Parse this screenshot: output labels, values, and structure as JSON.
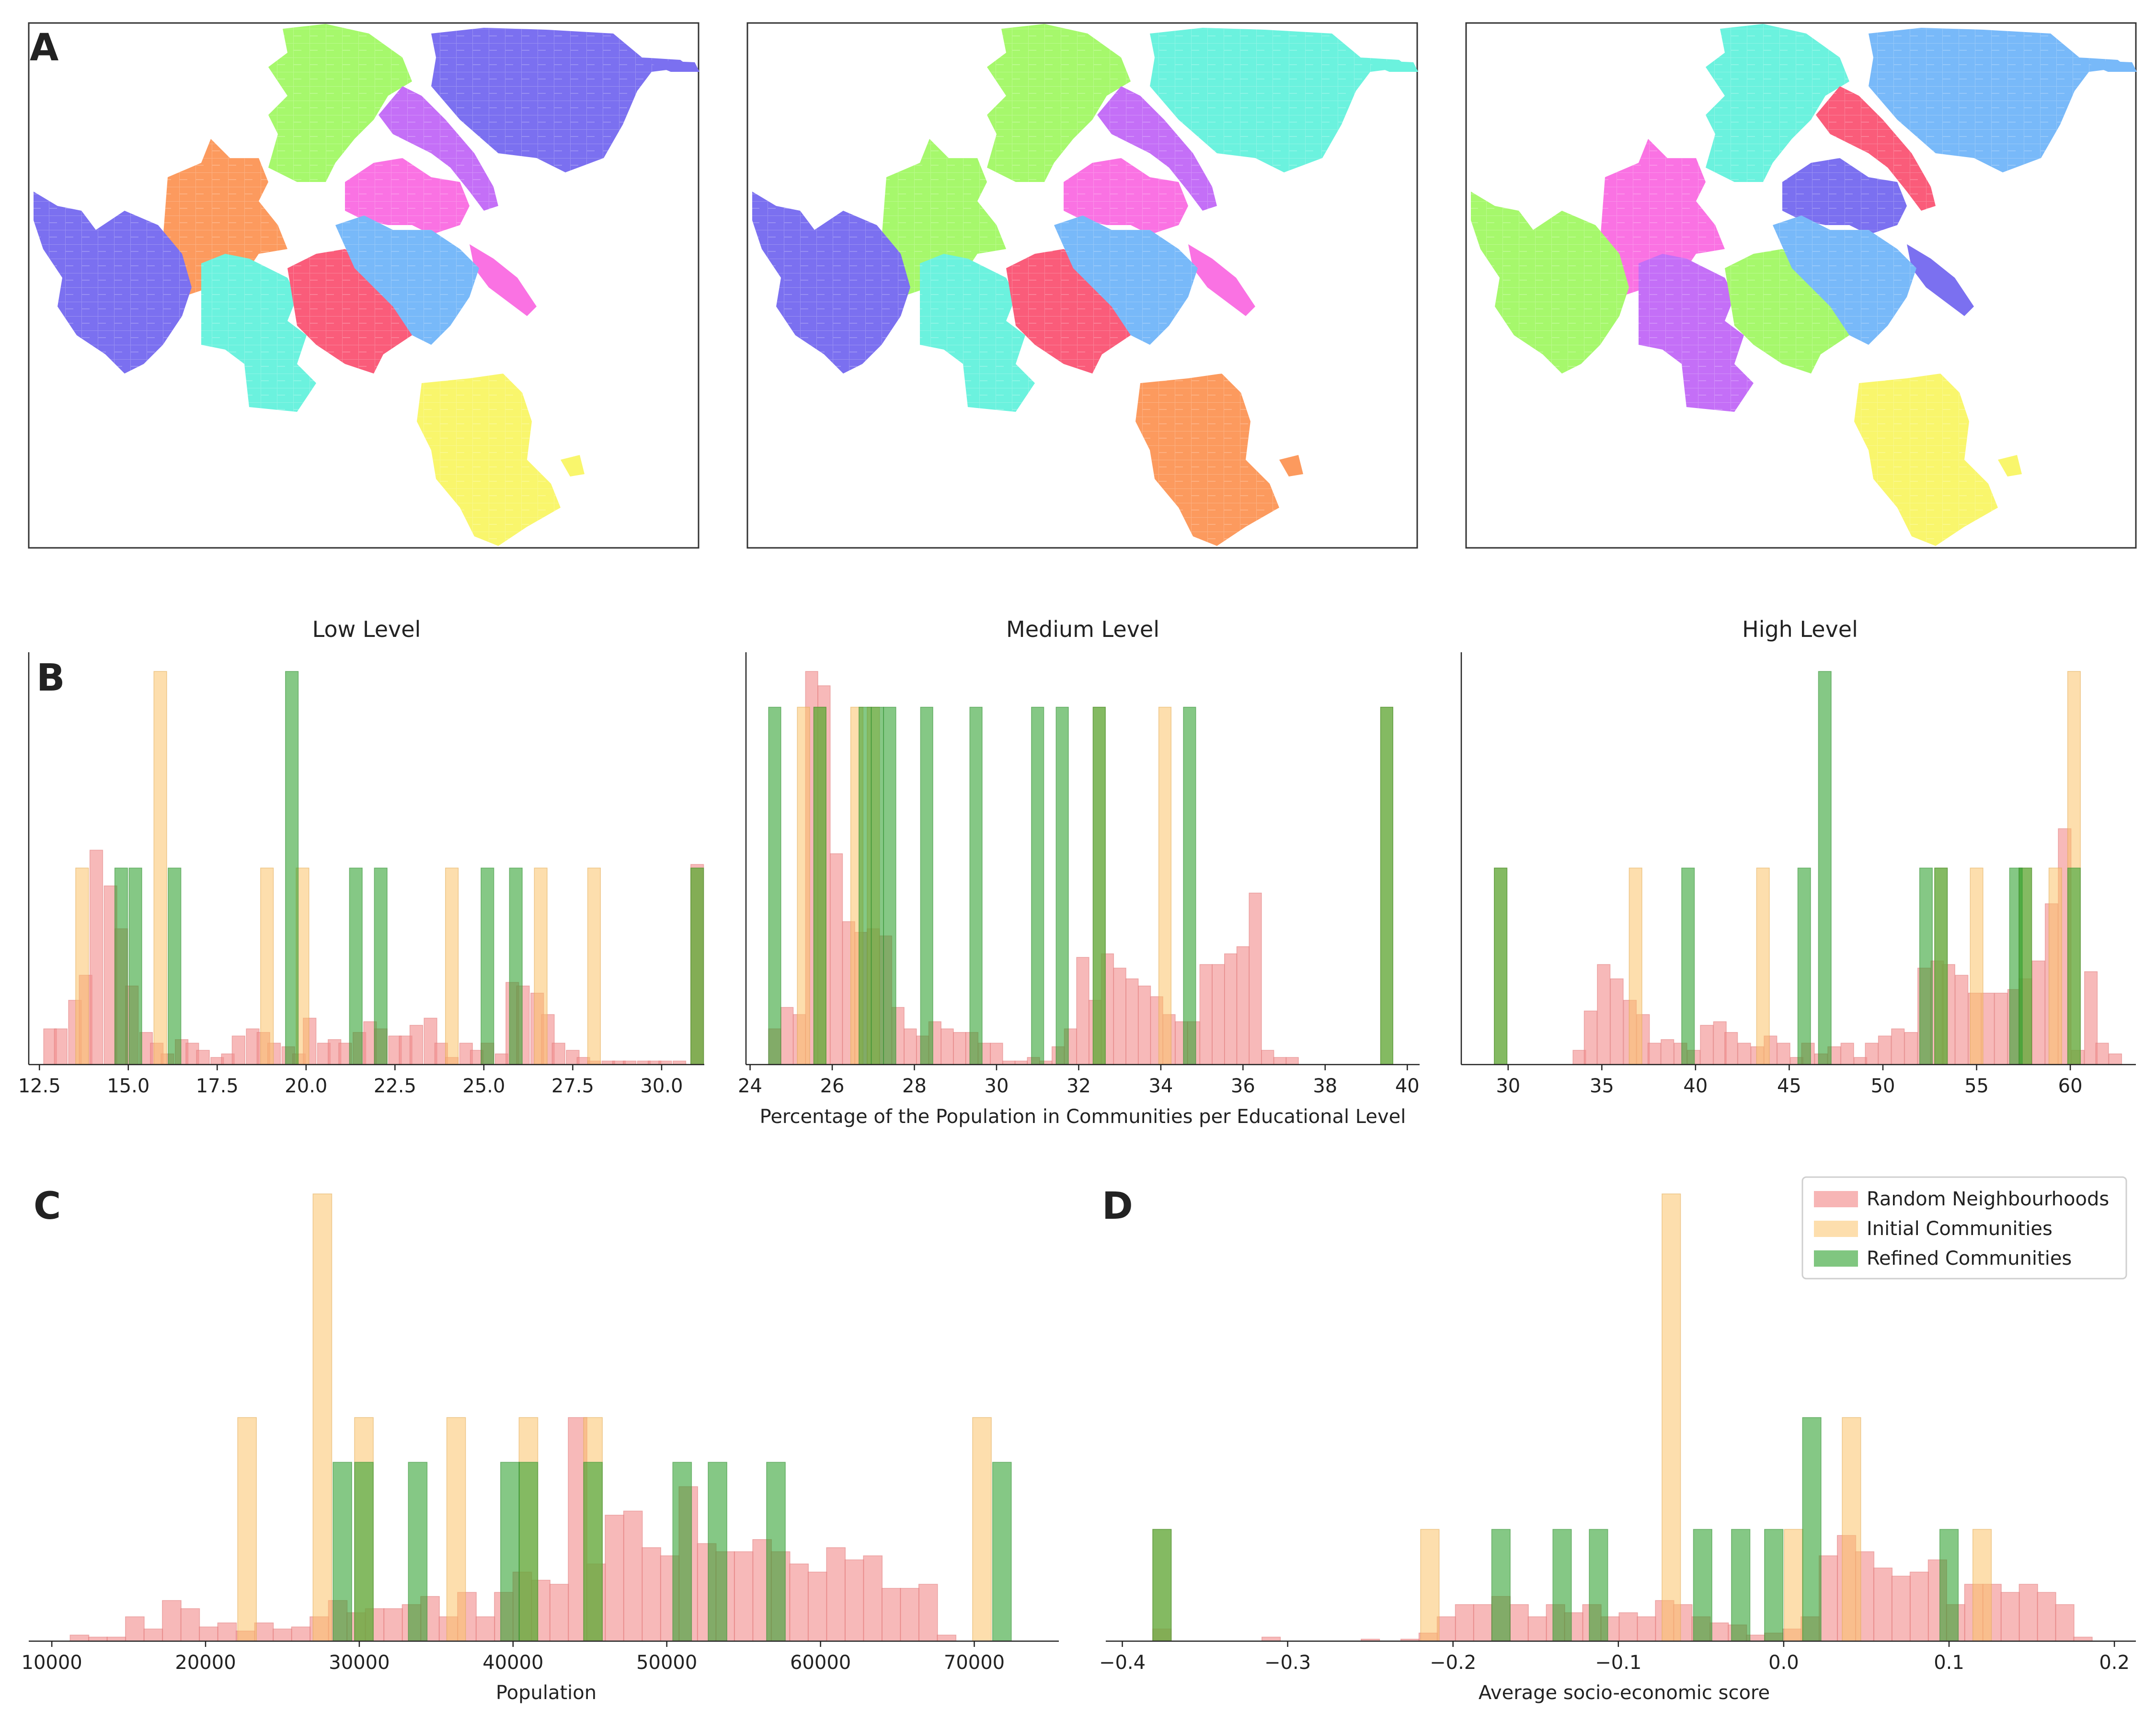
{
  "panel_labels": {
    "a": "A",
    "b": "B",
    "c": "C",
    "d": "D"
  },
  "colors": {
    "random": "#f28e8e",
    "initial": "#fcc36a",
    "refined": "#2ca02c",
    "palette": [
      "#7b70f0",
      "#a6f86c",
      "#fc9a5e",
      "#c46ff7",
      "#fa72e3",
      "#6bf2de",
      "#fa5c7a",
      "#78b9f9",
      "#f9f66c"
    ]
  },
  "panel_b_titles": [
    "Low Level",
    "Medium Level",
    "High Level"
  ],
  "panel_b_xlabel": "Percentage of the Population in Communities per Educational Level",
  "legend": [
    "Random Neighbourhoods",
    "Initial Communities",
    "Refined Communities"
  ],
  "chart_data": [
    {
      "type": "map",
      "panel": "A",
      "regions": [
        "purple-ne",
        "green-n",
        "orange-w",
        "violet-arc",
        "magenta-c",
        "cyan-sw",
        "red-c",
        "blue-c",
        "yellow-s",
        "purple-w"
      ],
      "region_colors_map1": [
        "#7b70f0",
        "#a6f86c",
        "#fc9a5e",
        "#c46ff7",
        "#fa72e3",
        "#6bf2de",
        "#fa5c7a",
        "#78b9f9",
        "#f9f66c",
        "#7b70f0"
      ],
      "region_colors_map2": [
        "#6bf2de",
        "#a6f86c",
        "#a6f86c",
        "#c46ff7",
        "#fa72e3",
        "#6bf2de",
        "#fa5c7a",
        "#78b9f9",
        "#fc9a5e",
        "#7b70f0"
      ],
      "region_colors_map3": [
        "#78b9f9",
        "#6bf2de",
        "#fa72e3",
        "#fa5c7a",
        "#7b70f0",
        "#c46ff7",
        "#a6f86c",
        "#78b9f9",
        "#f9f66c",
        "#a6f86c"
      ]
    },
    {
      "type": "bar",
      "panel": "B-low",
      "title": "Low Level",
      "xlim": [
        12.2,
        31.2
      ],
      "ylim": [
        0,
        11
      ],
      "xticks": [
        12.5,
        15.0,
        17.5,
        20.0,
        22.5,
        25.0,
        27.5,
        30.0
      ],
      "tick_labels": [
        "12.5",
        "15.0",
        "17.5",
        "20.0",
        "22.5",
        "25.0",
        "27.5",
        "30.0"
      ],
      "bin_width": 0.36,
      "series": [
        {
          "name": "Random Neighbourhoods",
          "x": [
            12.8,
            13.1,
            13.5,
            13.8,
            14.1,
            14.5,
            14.8,
            15.1,
            15.5,
            15.8,
            16.1,
            16.5,
            16.8,
            17.1,
            17.5,
            17.8,
            18.1,
            18.5,
            18.8,
            19.1,
            19.5,
            19.8,
            20.1,
            20.5,
            20.8,
            21.1,
            21.5,
            21.8,
            22.1,
            22.5,
            22.8,
            23.1,
            23.5,
            23.8,
            24.1,
            24.5,
            24.8,
            25.1,
            25.5,
            25.8,
            26.1,
            26.5,
            26.8,
            27.1,
            27.5,
            27.8,
            28.1,
            28.5,
            28.8,
            29.1,
            29.5,
            29.8,
            30.1,
            30.5,
            31.0
          ],
          "values": [
            1,
            1,
            1.8,
            2.5,
            6,
            5,
            3.8,
            2.2,
            0.9,
            0.6,
            0.3,
            0.7,
            0.6,
            0.4,
            0.2,
            0.3,
            0.8,
            1,
            0.9,
            0.6,
            0.5,
            0.3,
            1.3,
            0.6,
            0.7,
            0.6,
            0.9,
            1.2,
            1,
            0.8,
            0.8,
            1.1,
            1.3,
            0.6,
            0.2,
            0.6,
            0.4,
            0.6,
            0.3,
            2.3,
            2.2,
            2,
            1.4,
            0.6,
            0.4,
            0.2,
            0.1,
            0.1,
            0.1,
            0.1,
            0.1,
            0.1,
            0.1,
            0.1,
            5.6
          ]
        },
        {
          "name": "Initial Communities",
          "x": [
            13.7,
            15.9,
            18.9,
            19.9,
            24.1,
            26.6,
            28.1,
            31.0
          ],
          "values": [
            5.5,
            11,
            5.5,
            5.5,
            5.5,
            5.5,
            5.5,
            5.5
          ]
        },
        {
          "name": "Refined Communities",
          "x": [
            14.8,
            15.2,
            16.3,
            19.6,
            21.4,
            22.1,
            25.1,
            25.9,
            31.0
          ],
          "values": [
            5.5,
            5.5,
            5.5,
            11,
            5.5,
            5.5,
            5.5,
            5.5,
            5.5
          ]
        }
      ]
    },
    {
      "type": "bar",
      "panel": "B-medium",
      "title": "Medium Level",
      "xlabel": "Percentage of the Population in Communities per Educational Level",
      "xlim": [
        23.9,
        40.3
      ],
      "ylim": [
        0,
        11
      ],
      "xticks": [
        24,
        26,
        28,
        30,
        32,
        34,
        36,
        38,
        40
      ],
      "tick_labels": [
        "24",
        "26",
        "28",
        "30",
        "32",
        "34",
        "36",
        "38",
        "40"
      ],
      "bin_width": 0.3,
      "series": [
        {
          "name": "Random Neighbourhoods",
          "x": [
            24.6,
            24.9,
            25.2,
            25.5,
            25.8,
            26.1,
            26.4,
            26.7,
            27.0,
            27.3,
            27.6,
            27.9,
            28.2,
            28.5,
            28.8,
            29.1,
            29.4,
            29.7,
            30.0,
            30.3,
            30.6,
            30.9,
            31.2,
            31.5,
            31.8,
            32.1,
            32.4,
            32.7,
            33.0,
            33.3,
            33.6,
            33.9,
            34.2,
            34.5,
            34.8,
            35.1,
            35.4,
            35.7,
            36.0,
            36.3,
            36.6,
            36.9,
            37.2
          ],
          "values": [
            1,
            1.6,
            1.4,
            11,
            10.6,
            5.9,
            4,
            3.7,
            3.8,
            3.6,
            1.6,
            1,
            0.8,
            1.2,
            1,
            0.9,
            0.9,
            0.6,
            0.6,
            0.1,
            0.1,
            0.2,
            0.1,
            0.5,
            1,
            3,
            1.8,
            3.1,
            2.7,
            2.4,
            2.2,
            1.9,
            1.4,
            1.2,
            1.2,
            2.8,
            2.8,
            3.1,
            3.3,
            4.8,
            0.4,
            0.2,
            0.2
          ]
        },
        {
          "name": "Initial Communities",
          "x": [
            25.3,
            25.7,
            26.6,
            27.0,
            32.5,
            34.1,
            39.5
          ],
          "values": [
            10,
            10,
            10,
            10,
            10,
            10,
            10
          ]
        },
        {
          "name": "Refined Communities",
          "x": [
            24.6,
            25.7,
            26.8,
            27.1,
            27.4,
            28.3,
            29.5,
            31.0,
            31.6,
            32.5,
            34.7,
            39.5
          ],
          "values": [
            10,
            10,
            10,
            10,
            10,
            10,
            10,
            10,
            10,
            10,
            10,
            10
          ]
        }
      ]
    },
    {
      "type": "bar",
      "panel": "B-high",
      "title": "High Level",
      "xlim": [
        27.5,
        63.5
      ],
      "ylim": [
        0,
        11
      ],
      "xticks": [
        30,
        35,
        40,
        45,
        50,
        55,
        60
      ],
      "tick_labels": [
        "30",
        "35",
        "40",
        "45",
        "50",
        "55",
        "60"
      ],
      "bin_width": 0.68,
      "series": [
        {
          "name": "Random Neighbourhoods",
          "x": [
            33.8,
            34.4,
            35.1,
            35.8,
            36.5,
            37.2,
            37.8,
            38.5,
            39.2,
            39.9,
            40.6,
            41.3,
            41.9,
            42.6,
            43.3,
            44.0,
            44.7,
            45.4,
            46.0,
            46.7,
            47.4,
            48.1,
            48.8,
            49.4,
            50.1,
            50.8,
            51.5,
            52.2,
            52.9,
            53.5,
            54.2,
            54.9,
            55.6,
            56.3,
            57.0,
            57.6,
            58.3,
            59.0,
            59.7,
            60.4,
            61.1,
            61.7,
            62.4
          ],
          "values": [
            0.4,
            1.5,
            2.8,
            2.4,
            1.8,
            1.4,
            0.6,
            0.7,
            0.6,
            0.4,
            1.1,
            1.2,
            0.9,
            0.6,
            0.5,
            0.8,
            0.6,
            0.2,
            0.6,
            0.3,
            0.5,
            0.6,
            0.2,
            0.6,
            0.8,
            1,
            0.9,
            2.7,
            2.9,
            2.8,
            2.5,
            2,
            2,
            2,
            2.1,
            2.4,
            2.9,
            4.5,
            6.6,
            0.4,
            2.6,
            0.6,
            0.3
          ]
        },
        {
          "name": "Initial Communities",
          "x": [
            29.6,
            36.8,
            43.6,
            53.1,
            55.0,
            57.6,
            59.2,
            60.2
          ],
          "values": [
            5.5,
            5.5,
            5.5,
            5.5,
            5.5,
            5.5,
            5.5,
            11
          ]
        },
        {
          "name": "Refined Communities",
          "x": [
            29.6,
            39.6,
            45.8,
            46.9,
            52.3,
            53.1,
            57.1,
            57.6,
            60.2
          ],
          "values": [
            5.5,
            5.5,
            5.5,
            11,
            5.5,
            5.5,
            5.5,
            5.5,
            5.5
          ]
        }
      ]
    },
    {
      "type": "bar",
      "panel": "C",
      "xlabel": "Population",
      "xlim": [
        8500,
        75500
      ],
      "ylim": [
        0,
        11
      ],
      "xticks": [
        10000,
        20000,
        30000,
        40000,
        50000,
        60000,
        70000
      ],
      "tick_labels": [
        "10000",
        "20000",
        "30000",
        "40000",
        "50000",
        "60000",
        "70000"
      ],
      "bin_width": 1220,
      "series": [
        {
          "name": "Random Neighbourhoods",
          "x": [
            11800,
            13000,
            14200,
            15400,
            16600,
            17800,
            19000,
            20200,
            21400,
            22600,
            23800,
            25000,
            26200,
            27400,
            28600,
            29800,
            31000,
            32200,
            33400,
            34600,
            35800,
            37000,
            38200,
            39400,
            40600,
            41800,
            43000,
            44200,
            45400,
            46600,
            47800,
            49000,
            50200,
            51400,
            52600,
            53800,
            55000,
            56200,
            57400,
            58600,
            59800,
            61000,
            62200,
            63400,
            64600,
            65800,
            67000,
            68200
          ],
          "values": [
            0.15,
            0.1,
            0.1,
            0.6,
            0.3,
            1,
            0.8,
            0.35,
            0.45,
            0.25,
            0.45,
            0.3,
            0.35,
            0.6,
            1,
            0.7,
            0.8,
            0.8,
            0.9,
            1.1,
            0.6,
            1.2,
            0.6,
            1.2,
            1.7,
            1.5,
            1.4,
            5.5,
            1.9,
            3.1,
            3.2,
            2.3,
            2.1,
            3.8,
            2.4,
            2.2,
            2.2,
            2.5,
            2.2,
            1.9,
            1.7,
            2.3,
            2.0,
            2.1,
            1.3,
            1.3,
            1.4,
            0.15
          ]
        },
        {
          "name": "Initial Communities",
          "x": [
            22700,
            27600,
            30300,
            36300,
            41000,
            45200,
            70500
          ],
          "values": [
            5.5,
            11,
            5.5,
            5.5,
            5.5,
            5.5,
            5.5
          ]
        },
        {
          "name": "Refined Communities",
          "x": [
            28900,
            30300,
            33800,
            39800,
            41000,
            45200,
            51000,
            53300,
            57100,
            71800
          ],
          "values": [
            4.4,
            4.4,
            4.4,
            4.4,
            4.4,
            4.4,
            4.4,
            4.4,
            4.4,
            4.4
          ]
        }
      ]
    },
    {
      "type": "bar",
      "panel": "D",
      "xlabel": "Average socio-economic score",
      "xlim": [
        -0.41,
        0.213
      ],
      "ylim": [
        0,
        11
      ],
      "xticks": [
        -0.4,
        -0.3,
        -0.2,
        -0.1,
        0.0,
        0.1,
        0.2
      ],
      "tick_labels": [
        "−0.4",
        "−0.3",
        "−0.2",
        "−0.1",
        "0.0",
        "0.1",
        "0.2"
      ],
      "legend_position": "top-right",
      "bin_width": 0.0112,
      "series": [
        {
          "name": "Random Neighbourhoods",
          "x": [
            -0.376,
            -0.31,
            -0.25,
            -0.226,
            -0.215,
            -0.204,
            -0.193,
            -0.182,
            -0.171,
            -0.16,
            -0.149,
            -0.138,
            -0.127,
            -0.116,
            -0.105,
            -0.094,
            -0.083,
            -0.072,
            -0.061,
            -0.05,
            -0.039,
            -0.028,
            -0.017,
            -0.006,
            0.005,
            0.016,
            0.027,
            0.038,
            0.049,
            0.06,
            0.071,
            0.082,
            0.093,
            0.104,
            0.115,
            0.126,
            0.137,
            0.148,
            0.159,
            0.17,
            0.181
          ],
          "values": [
            0.3,
            0.1,
            0.05,
            0.05,
            0.2,
            0.6,
            0.9,
            0.9,
            1.1,
            0.9,
            0.6,
            0.9,
            0.7,
            0.9,
            0.6,
            0.7,
            0.6,
            1,
            0.9,
            0.6,
            0.45,
            0.4,
            0.15,
            0.2,
            0.3,
            0.6,
            2.1,
            2.6,
            2.2,
            1.8,
            1.6,
            1.7,
            2,
            0.9,
            1.4,
            1.4,
            1.2,
            1.4,
            1.2,
            0.9,
            0.1
          ]
        },
        {
          "name": "Initial Communities",
          "x": [
            -0.376,
            -0.214,
            -0.068,
            0.006,
            0.041,
            0.12
          ],
          "values": [
            2.75,
            2.75,
            11,
            2.75,
            5.5,
            2.75
          ]
        },
        {
          "name": "Refined Communities",
          "x": [
            -0.376,
            -0.171,
            -0.134,
            -0.112,
            -0.049,
            -0.026,
            -0.006,
            0.017,
            0.1
          ],
          "values": [
            2.75,
            2.75,
            2.75,
            2.75,
            2.75,
            2.75,
            2.75,
            5.5,
            2.75
          ]
        }
      ]
    }
  ]
}
